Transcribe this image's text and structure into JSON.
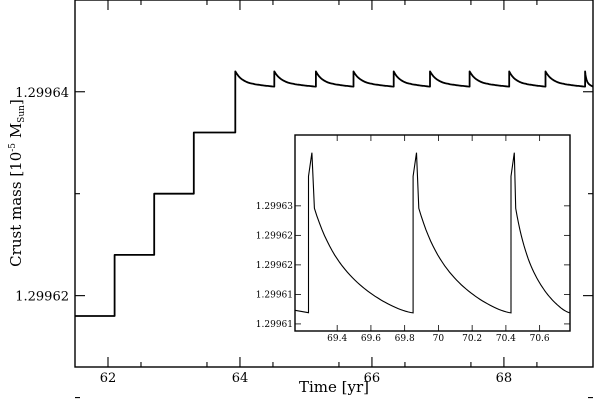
{
  "chart_data": [
    {
      "type": "line",
      "xlabel": "Time [yr]",
      "ylabel_parts": {
        "main": "Crust mass [10",
        "exp": "-5",
        "unit": " M",
        "sub": "Sun",
        "end": "]"
      },
      "xlim": [
        61.5,
        69.35
      ],
      "ylim": [
        1.299613,
        1.299649
      ],
      "xticks": [
        62,
        64,
        66,
        68
      ],
      "xtick_labels": [
        "62",
        "64",
        "66",
        "68"
      ],
      "yticks": [
        1.29962,
        1.29964
      ],
      "ytick_labels": [
        "1.29962",
        "1.29964"
      ],
      "series": [
        {
          "values_description": "staircase accretion then periodic bursts",
          "steps": [
            {
              "x_start": 61.5,
              "x_end": 62.1,
              "y": 1.299618
            },
            {
              "x_start": 62.1,
              "x_end": 62.7,
              "y": 1.299624
            },
            {
              "x_start": 62.7,
              "x_end": 63.3,
              "y": 1.29963
            },
            {
              "x_start": 63.3,
              "x_end": 63.93,
              "y": 1.299636
            }
          ],
          "burst_times": [
            63.93,
            64.52,
            65.15,
            65.72,
            66.33,
            66.88,
            67.48,
            68.08,
            68.63,
            69.23
          ],
          "burst_peak": 1.299642,
          "burst_floor": 1.2996405
        }
      ]
    },
    {
      "type": "line",
      "inset": true,
      "xlim": [
        69.15,
        70.78
      ],
      "ylim": [
        1.2996088,
        1.299642
      ],
      "xticks": [
        69.4,
        69.6,
        69.8,
        70,
        70.2,
        70.4,
        70.6
      ],
      "xtick_labels": [
        "69.4",
        "69.6",
        "69.8",
        "70",
        "70.2",
        "70.4",
        "70.6"
      ],
      "yticks": [
        1.29961,
        1.299615,
        1.29962,
        1.299625,
        1.29963
      ],
      "ytick_labels": [
        "1.29961",
        "1.29961",
        "1.29962",
        "1.29962",
        "1.29963"
      ],
      "series": [
        {
          "burst_times": [
            69.23,
            69.85,
            70.43
          ],
          "peak": 1.299639,
          "floor": 1.2996118,
          "start_level": 1.2996123
        }
      ]
    }
  ]
}
